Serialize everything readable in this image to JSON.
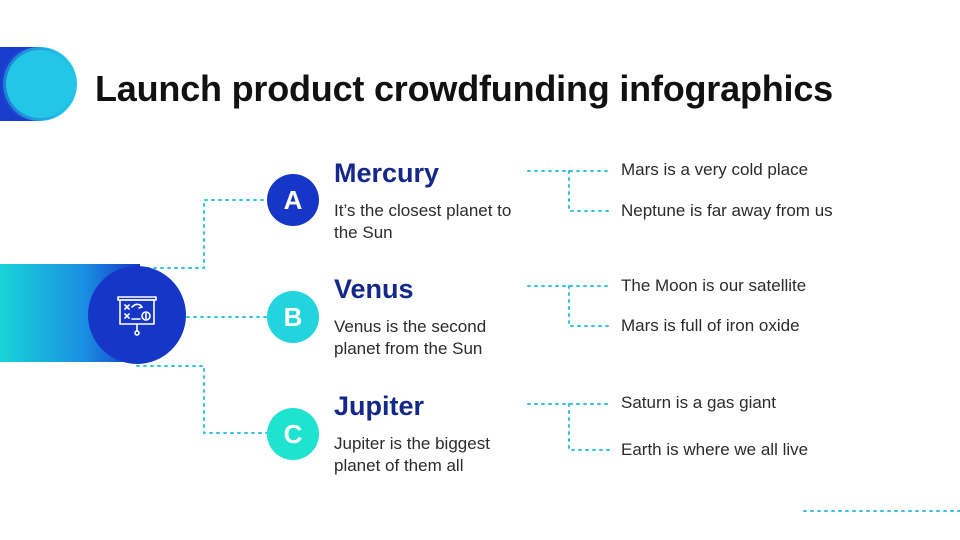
{
  "title": "Launch product crowdfunding infographics",
  "colors": {
    "primary_blue": "#1636c8",
    "mid_blue": "#14288a",
    "cyan": "#22d3e0",
    "teal": "#1ee0cc",
    "dotted_line": "#35c4de"
  },
  "hub": {
    "icon": "presentation-board-icon"
  },
  "items": [
    {
      "letter": "A",
      "heading": "Mercury",
      "description": "It’s the closest planet to the Sun",
      "notes": [
        "Mars is a very cold place",
        "Neptune is far away from us"
      ]
    },
    {
      "letter": "B",
      "heading": "Venus",
      "description": "Venus is the second planet from the Sun",
      "notes": [
        "The Moon is our satellite",
        "Mars is full of iron oxide"
      ]
    },
    {
      "letter": "C",
      "heading": "Jupiter",
      "description": "Jupiter is the biggest planet of them all",
      "notes": [
        "Saturn is a gas giant",
        "Earth is where we all live"
      ]
    }
  ]
}
